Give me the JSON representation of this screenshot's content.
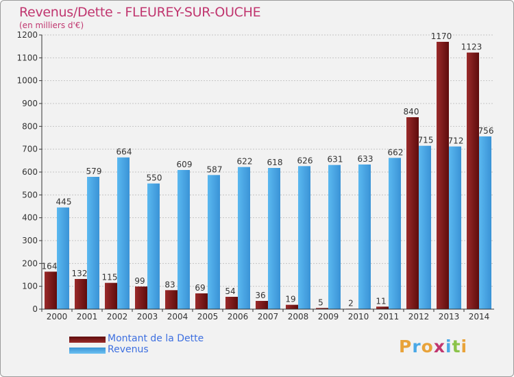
{
  "title": "Revenus/Dette - FLEUREY-SUR-OUCHE",
  "unit_label": "(en milliers d'€)",
  "colors": {
    "title": "#c0366f",
    "dette": "#7a1616",
    "revenus": "#4aa8e6",
    "axis": "#333333",
    "grid": "#c4c4c4",
    "legend_text": "#3d6fe0"
  },
  "chart_data": {
    "type": "bar",
    "title": "Revenus/Dette - FLEUREY-SUR-OUCHE",
    "ylabel": "(en milliers d'€)",
    "xlabel": "",
    "ylim": [
      0,
      1200
    ],
    "yticks": [
      0,
      100,
      200,
      300,
      400,
      500,
      600,
      700,
      800,
      900,
      1000,
      1100,
      1200
    ],
    "grid": true,
    "categories": [
      "2000",
      "2001",
      "2002",
      "2003",
      "2004",
      "2005",
      "2006",
      "2007",
      "2008",
      "2009",
      "2010",
      "2011",
      "2012",
      "2013",
      "2014"
    ],
    "series": [
      {
        "name": "Montant de la Dette",
        "values": [
          164,
          132,
          115,
          99,
          83,
          69,
          54,
          36,
          19,
          5,
          2,
          11,
          840,
          1170,
          1123
        ]
      },
      {
        "name": "Revenus",
        "values": [
          445,
          579,
          664,
          550,
          609,
          587,
          622,
          618,
          626,
          631,
          633,
          662,
          715,
          712,
          756
        ]
      }
    ],
    "legend_position": "bottom-left"
  },
  "legend": {
    "items": [
      {
        "label": "Montant de la Dette",
        "color": "#7a1616"
      },
      {
        "label": "Revenus",
        "color": "#4aa8e6"
      }
    ]
  },
  "logo": {
    "letters": [
      "P",
      "r",
      "o",
      "x",
      "i",
      "t",
      "i"
    ],
    "colors": [
      "#e8a33a",
      "#4aa8e6",
      "#e8a33a",
      "#c0366f",
      "#4aa8e6",
      "#8bc34a",
      "#e8a33a"
    ]
  }
}
